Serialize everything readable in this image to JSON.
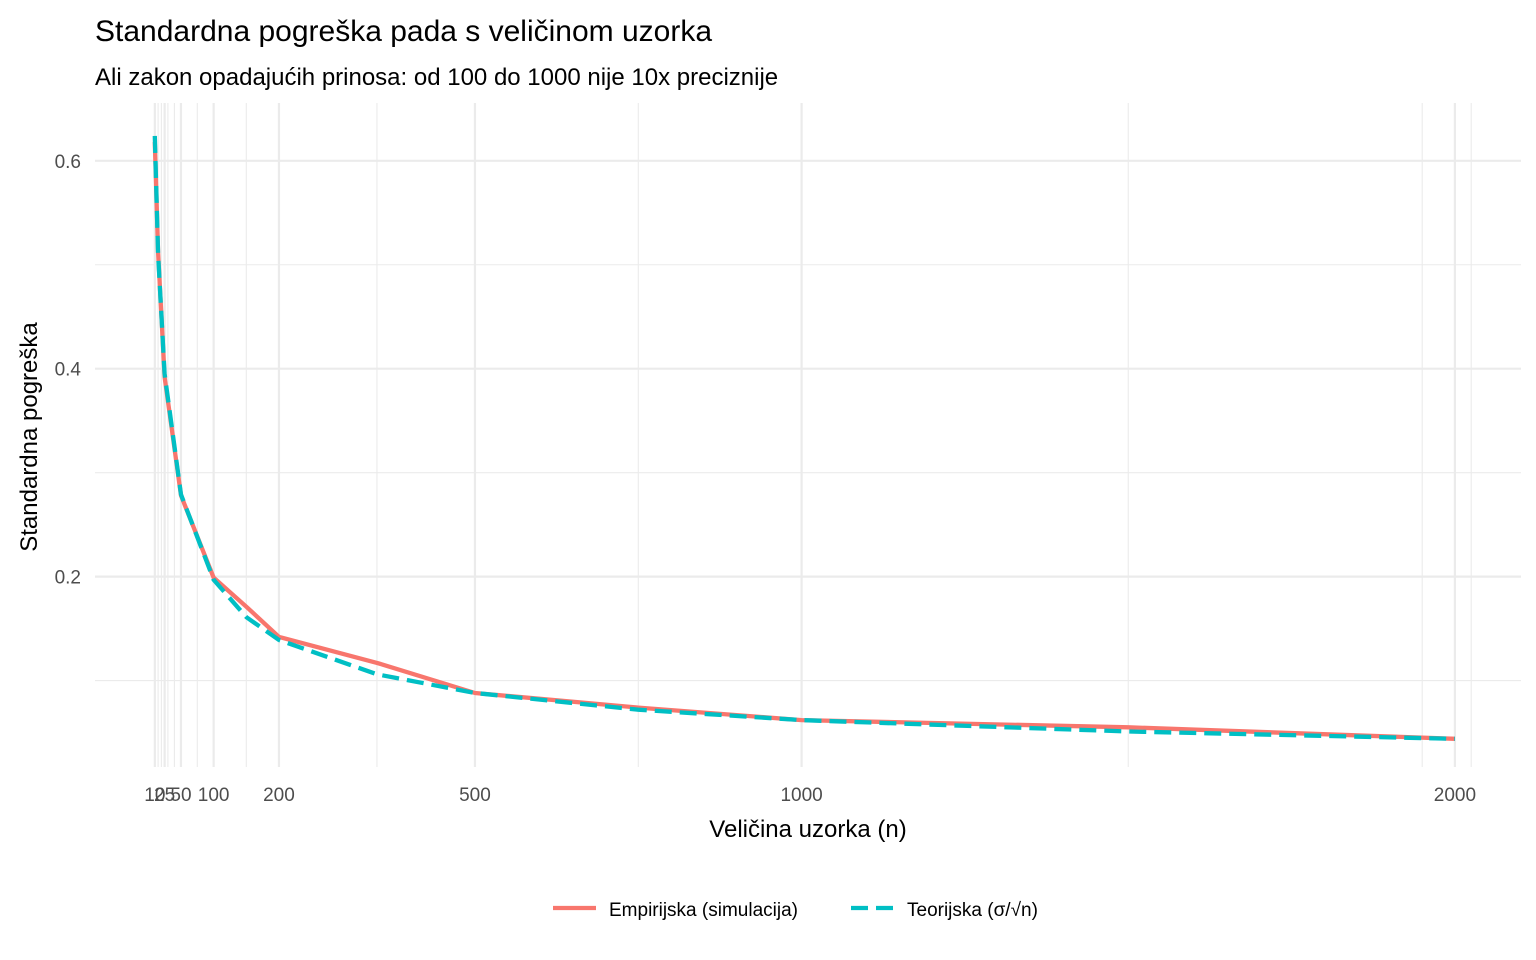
{
  "chart_data": {
    "type": "line",
    "title": "Standardna pogreška pada s veličinom uzorka",
    "subtitle": "Ali zakon opadajućih prinosa: od 100 do 1000 nije 10x preciznije",
    "xlabel": "Veličina uzorka (n)",
    "ylabel": "Standardna pogreška",
    "xlim": [
      0,
      2030
    ],
    "ylim": [
      0.0,
      0.655
    ],
    "x_ticks": [
      10,
      25,
      50,
      100,
      200,
      500,
      1000,
      2000
    ],
    "x_tick_labels": [
      "10",
      "25",
      "50",
      "100",
      "200",
      "500",
      "1000",
      "2000"
    ],
    "x_minor_gridlines": [
      15,
      20,
      30,
      40,
      75,
      150,
      350,
      750,
      1500,
      1950,
      2025
    ],
    "y_ticks": [
      0.2,
      0.4,
      0.6
    ],
    "y_tick_labels": [
      "0.2",
      "0.4",
      "0.6"
    ],
    "y_minor_gridlines": [
      0.1,
      0.3,
      0.5
    ],
    "grid": true,
    "legend_position": "bottom",
    "x": [
      10,
      15,
      25,
      50,
      100,
      150,
      200,
      350,
      500,
      750,
      1000,
      1500,
      2000
    ],
    "series": [
      {
        "name": "Empirijska (simulacija)",
        "color": "#F8766D",
        "style": "solid",
        "values": [
          0.618,
          0.512,
          0.392,
          0.278,
          0.199,
          0.171,
          0.142,
          0.117,
          0.088,
          0.074,
          0.062,
          0.055,
          0.044
        ]
      },
      {
        "name": "Teorijska (σ/√n)",
        "color": "#00BFC4",
        "style": "dashed",
        "values": [
          0.624,
          0.51,
          0.395,
          0.279,
          0.197,
          0.161,
          0.139,
          0.106,
          0.088,
          0.072,
          0.062,
          0.051,
          0.044
        ]
      }
    ]
  }
}
